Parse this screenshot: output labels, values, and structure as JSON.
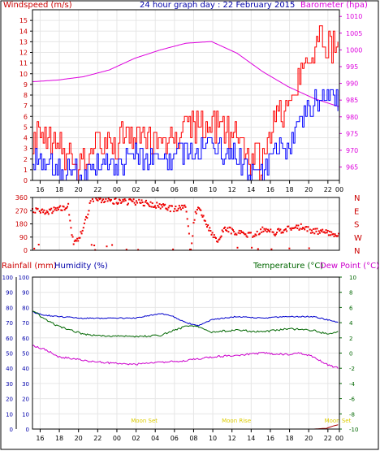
{
  "chart_data": [
    {
      "type": "line",
      "title": "24 hour graph day : 22 February 2015",
      "left_axis_label": "Windspeed (m/s)",
      "right_axis_label": "Barometer (hpa)",
      "x_ticks": [
        "16",
        "18",
        "20",
        "22",
        "00",
        "02",
        "04",
        "06",
        "08",
        "10",
        "12",
        "14",
        "16",
        "18",
        "20",
        "22",
        "00"
      ],
      "y_left_ticks": [
        0,
        1,
        2,
        3,
        4,
        5,
        6,
        7,
        8,
        9,
        10,
        11,
        12,
        13,
        14,
        15
      ],
      "y_left_lim": [
        0,
        16
      ],
      "y_right_ticks": [
        965,
        970,
        975,
        980,
        985,
        990,
        995,
        1000,
        1005,
        1010
      ],
      "y_right_lim": [
        961,
        1012
      ],
      "grid": true,
      "series": [
        {
          "name": "Barometer",
          "axis": "right",
          "color": "#dd00dd",
          "x": [
            0,
            2,
            4,
            6,
            8,
            10,
            12,
            14,
            16,
            18,
            20,
            22,
            24
          ],
          "values": [
            990.5,
            991,
            992,
            994,
            997.5,
            1000,
            1002,
            1002.5,
            999,
            993.5,
            989,
            985.5,
            983
          ]
        },
        {
          "key": "gust",
          "axis": "left",
          "color": "#ff0000",
          "noise_scale": 1.7,
          "x": [
            0,
            1,
            2,
            3,
            4,
            5,
            6,
            7,
            8,
            9,
            10,
            11,
            12,
            13,
            14,
            15,
            16,
            17,
            18,
            19,
            20,
            21,
            22,
            23,
            24
          ],
          "values": [
            3.5,
            3.5,
            3,
            1.5,
            1.5,
            3.5,
            3,
            3.5,
            4.5,
            3.5,
            4,
            3.5,
            5,
            5,
            5,
            4.5,
            4,
            2,
            1.5,
            6,
            6.5,
            10,
            12.5,
            13,
            12
          ]
        },
        {
          "key": "avg",
          "axis": "left",
          "color": "#0000ff",
          "noise_scale": 1.2,
          "x": [
            0,
            1,
            2,
            3,
            4,
            5,
            6,
            7,
            8,
            9,
            10,
            11,
            12,
            13,
            14,
            15,
            16,
            17,
            18,
            19,
            20,
            21,
            22,
            23,
            24
          ],
          "values": [
            1.5,
            1.5,
            1,
            0.5,
            0.5,
            1.5,
            1.5,
            1.5,
            2.5,
            2,
            2,
            1.5,
            3,
            3,
            3,
            2.5,
            2,
            0.5,
            0.5,
            3,
            3,
            5,
            7,
            8,
            7.5
          ]
        }
      ]
    },
    {
      "type": "scatter",
      "y_ticks": [
        0,
        90,
        180,
        270,
        360
      ],
      "y_lim": [
        0,
        360
      ],
      "right_labels": [
        "N",
        "W",
        "S",
        "E",
        "N"
      ],
      "series": [
        {
          "key": "wind_direction",
          "color": "#ee0000",
          "x": [
            0,
            1,
            2,
            2.8,
            3.2,
            3.5,
            3.8,
            4.3,
            4.5,
            5,
            6,
            7,
            8,
            9,
            10,
            11,
            12,
            12.4,
            12.7,
            13,
            13.5,
            14,
            14.5,
            15,
            16,
            17,
            18,
            19,
            20,
            21,
            22,
            23,
            24
          ],
          "values": [
            270,
            260,
            280,
            300,
            40,
            60,
            120,
            240,
            330,
            350,
            340,
            330,
            330,
            320,
            300,
            280,
            290,
            10,
            250,
            290,
            200,
            120,
            60,
            150,
            120,
            100,
            140,
            120,
            150,
            160,
            130,
            120,
            110
          ]
        }
      ]
    },
    {
      "type": "line",
      "left_axis_labels": [
        "Rainfall (mm)",
        "Humidity (%)"
      ],
      "right_axis_labels": [
        "Temperature (°C)",
        "Dew Point (°C)"
      ],
      "x_ticks": [
        "16",
        "18",
        "20",
        "22",
        "00",
        "02",
        "04",
        "06",
        "08",
        "10",
        "12",
        "14",
        "16",
        "18",
        "20",
        "22",
        "00"
      ],
      "y_left_ticks": [
        0,
        10,
        20,
        30,
        40,
        50,
        60,
        70,
        80,
        90,
        100
      ],
      "y_left_lim": [
        0,
        100
      ],
      "y_right_ticks": [
        -10,
        -8,
        -6,
        -4,
        -2,
        0,
        2,
        4,
        6,
        8,
        10
      ],
      "y_right_lim": [
        -10,
        10
      ],
      "annotations": [
        "Moon Set",
        "Moon Rise",
        "Moon Set"
      ],
      "series": [
        {
          "name": "Humidity",
          "axis": "left",
          "color": "#0000cc",
          "x": [
            0,
            1,
            2,
            4,
            6,
            8,
            10,
            11,
            12,
            13,
            14,
            16,
            18,
            20,
            22,
            23,
            24
          ],
          "values": [
            77,
            75,
            74,
            73,
            73,
            73,
            76,
            74,
            70,
            68,
            72,
            74,
            73,
            74,
            74,
            72,
            70
          ]
        },
        {
          "name": "Temperature",
          "axis": "right",
          "color": "#006600",
          "x": [
            0,
            1,
            2,
            3,
            4,
            6,
            8,
            10,
            11,
            12,
            13,
            14,
            16,
            18,
            20,
            22,
            23,
            24
          ],
          "values": [
            5.5,
            4.5,
            3.5,
            3,
            2.5,
            2.2,
            2.2,
            2.3,
            3,
            3.5,
            3.5,
            2.8,
            3,
            2.8,
            3.2,
            3,
            2.5,
            2.8
          ]
        },
        {
          "name": "Dew Point",
          "axis": "right",
          "color": "#cc00cc",
          "x": [
            0,
            1,
            2,
            3,
            4,
            6,
            8,
            10,
            12,
            14,
            16,
            18,
            20,
            21,
            22,
            23,
            24
          ],
          "values": [
            1,
            0.5,
            -0.5,
            -0.7,
            -1,
            -1.3,
            -1.5,
            -1.2,
            -1,
            -0.5,
            -0.3,
            0,
            -0.2,
            0,
            -0.5,
            -1.5,
            -2
          ]
        },
        {
          "name": "Rainfall",
          "axis": "left",
          "color": "#aa0000",
          "x": [
            0,
            22,
            23,
            23.5,
            24
          ],
          "values": [
            0,
            0,
            0.5,
            2,
            3
          ]
        }
      ]
    }
  ]
}
